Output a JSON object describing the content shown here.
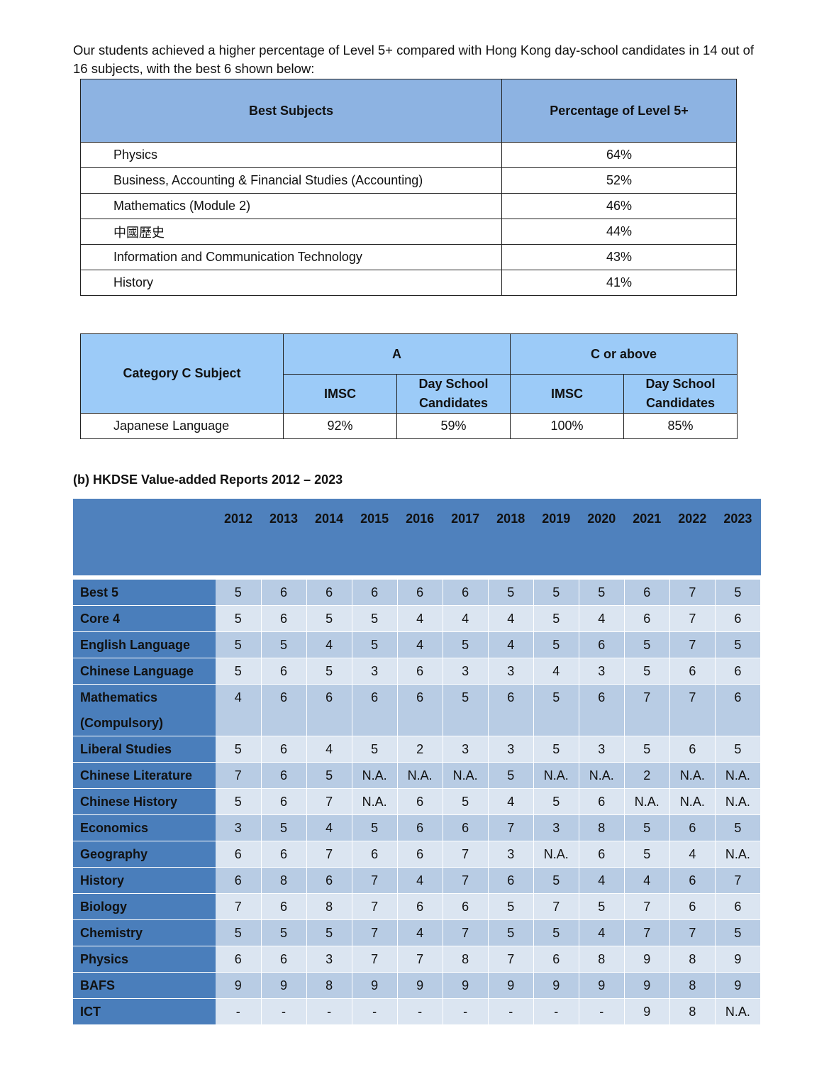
{
  "intro": "Our students achieved a higher percentage of Level 5+ compared with Hong Kong day-school candidates in 14 out of 16 subjects, with the best 6 shown below:",
  "best_table": {
    "headers": [
      "Best Subjects",
      "Percentage of Level 5+"
    ],
    "rows": [
      [
        "Physics",
        "64%"
      ],
      [
        "Business, Accounting & Financial Studies (Accounting)",
        "52%"
      ],
      [
        "Mathematics (Module 2)",
        "46%"
      ],
      [
        "中國歷史",
        "44%"
      ],
      [
        "Information and Communication Technology",
        "43%"
      ],
      [
        "History",
        "41%"
      ]
    ]
  },
  "category_table": {
    "header": "Category C Subject",
    "groups": [
      "A",
      "C or above"
    ],
    "subheaders": [
      "IMSC",
      "Day School Candidates",
      "IMSC",
      "Day School Candidates"
    ],
    "rows": [
      [
        "Japanese Language",
        "92%",
        "59%",
        "100%",
        "85%"
      ]
    ]
  },
  "section_title": "(b) HKDSE Value-added Reports 2012 – 2023",
  "value_table": {
    "years": [
      "2012",
      "2013",
      "2014",
      "2015",
      "2016",
      "2017",
      "2018",
      "2019",
      "2020",
      "2021",
      "2022",
      "2023"
    ],
    "rows": [
      {
        "label": "Best 5",
        "values": [
          "5",
          "6",
          "6",
          "6",
          "6",
          "6",
          "5",
          "5",
          "5",
          "6",
          "7",
          "5"
        ]
      },
      {
        "label": "Core 4",
        "values": [
          "5",
          "6",
          "5",
          "5",
          "4",
          "4",
          "4",
          "5",
          "4",
          "6",
          "7",
          "6"
        ]
      },
      {
        "label": "English Language",
        "values": [
          "5",
          "5",
          "4",
          "5",
          "4",
          "5",
          "4",
          "5",
          "6",
          "5",
          "7",
          "5"
        ]
      },
      {
        "label": "Chinese Language",
        "values": [
          "5",
          "6",
          "5",
          "3",
          "6",
          "3",
          "3",
          "4",
          "3",
          "5",
          "6",
          "6"
        ]
      },
      {
        "label": "Mathematics (Compulsory)",
        "values": [
          "4",
          "6",
          "6",
          "6",
          "6",
          "5",
          "6",
          "5",
          "6",
          "7",
          "7",
          "6"
        ]
      },
      {
        "label": "Liberal Studies",
        "values": [
          "5",
          "6",
          "4",
          "5",
          "2",
          "3",
          "3",
          "5",
          "3",
          "5",
          "6",
          "5"
        ]
      },
      {
        "label": "Chinese Literature",
        "values": [
          "7",
          "6",
          "5",
          "N.A.",
          "N.A.",
          "N.A.",
          "5",
          "N.A.",
          "N.A.",
          "2",
          "N.A.",
          "N.A."
        ]
      },
      {
        "label": "Chinese History",
        "values": [
          "5",
          "6",
          "7",
          "N.A.",
          "6",
          "5",
          "4",
          "5",
          "6",
          "N.A.",
          "N.A.",
          "N.A."
        ]
      },
      {
        "label": "Economics",
        "values": [
          "3",
          "5",
          "4",
          "5",
          "6",
          "6",
          "7",
          "3",
          "8",
          "5",
          "6",
          "5"
        ]
      },
      {
        "label": "Geography",
        "values": [
          "6",
          "6",
          "7",
          "6",
          "6",
          "7",
          "3",
          "N.A.",
          "6",
          "5",
          "4",
          "N.A."
        ]
      },
      {
        "label": "History",
        "values": [
          "6",
          "8",
          "6",
          "7",
          "4",
          "7",
          "6",
          "5",
          "4",
          "4",
          "6",
          "7"
        ]
      },
      {
        "label": "Biology",
        "values": [
          "7",
          "6",
          "8",
          "7",
          "6",
          "6",
          "5",
          "7",
          "5",
          "7",
          "6",
          "6"
        ]
      },
      {
        "label": "Chemistry",
        "values": [
          "5",
          "5",
          "5",
          "7",
          "4",
          "7",
          "5",
          "5",
          "4",
          "7",
          "7",
          "5"
        ]
      },
      {
        "label": "Physics",
        "values": [
          "6",
          "6",
          "3",
          "7",
          "7",
          "8",
          "7",
          "6",
          "8",
          "9",
          "8",
          "9"
        ]
      },
      {
        "label": "BAFS",
        "values": [
          "9",
          "9",
          "8",
          "9",
          "9",
          "9",
          "9",
          "9",
          "9",
          "9",
          "8",
          "9"
        ]
      },
      {
        "label": "ICT",
        "values": [
          "-",
          "-",
          "-",
          "-",
          "-",
          "-",
          "-",
          "-",
          "-",
          "9",
          "8",
          "N.A."
        ]
      }
    ]
  }
}
